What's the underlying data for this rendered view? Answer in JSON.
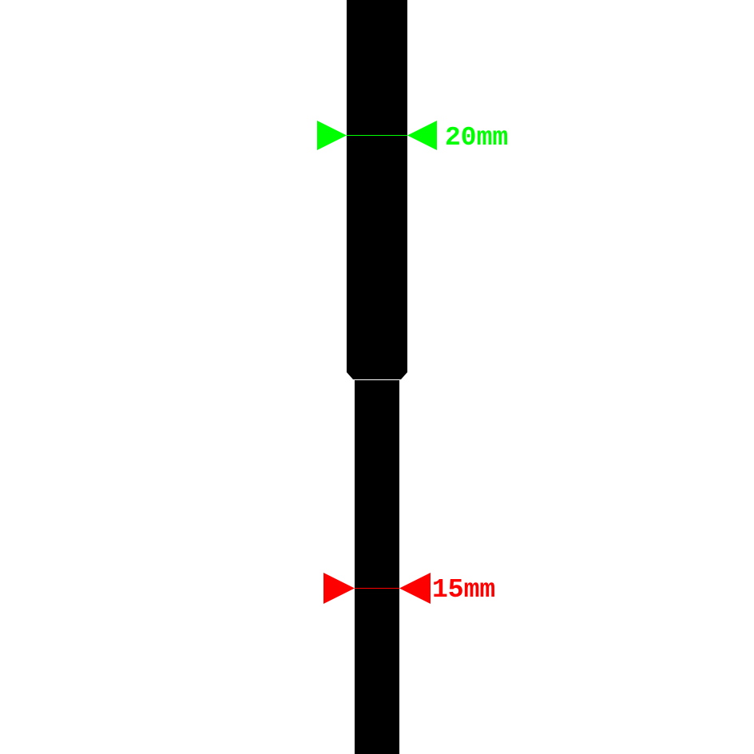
{
  "diagram": {
    "title": "",
    "shaft_color": "#000000",
    "upper_section": {
      "diameter_label": "20mm",
      "diameter_mm": 20,
      "color": "#00ff00"
    },
    "lower_section": {
      "diameter_label": "15mm",
      "diameter_mm": 15,
      "color": "#ff0000"
    }
  }
}
